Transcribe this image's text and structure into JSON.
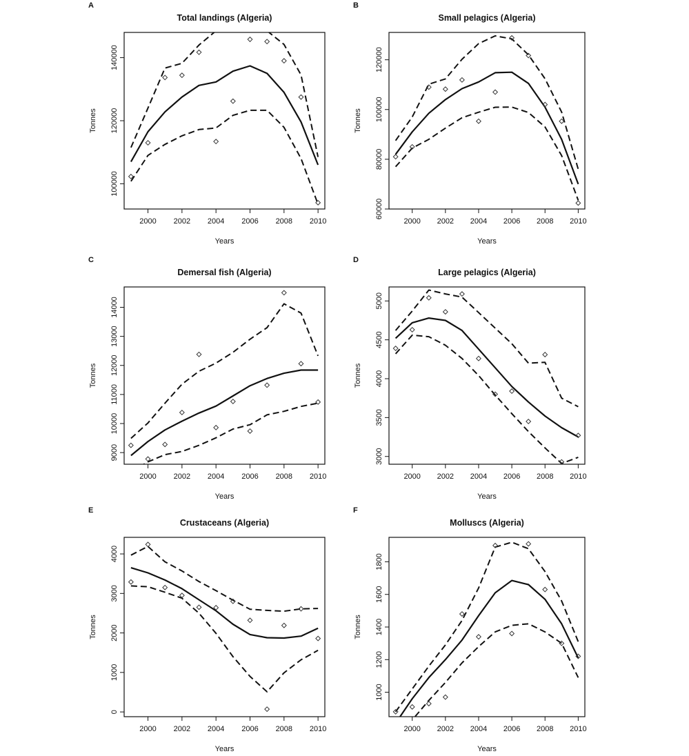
{
  "chart_data": [
    {
      "panel": "A",
      "type": "line",
      "title": "Total landings (Algeria)",
      "xlabel": "Years",
      "ylabel": "Tonnes",
      "xlim": [
        1998.6,
        2010.4
      ],
      "ylim": [
        92000,
        148000
      ],
      "xticks": [
        2000,
        2002,
        2004,
        2006,
        2008,
        2010
      ],
      "yticks": [
        100000,
        120000,
        140000
      ],
      "ytick_labels": [
        "100000",
        "120000",
        "140000"
      ],
      "x": [
        1999,
        2000,
        2001,
        2002,
        2003,
        2004,
        2005,
        2006,
        2007,
        2008,
        2009,
        2010
      ],
      "series": [
        {
          "role": "fit",
          "style": "solid",
          "values": [
            107000,
            116500,
            122800,
            127500,
            131200,
            132300,
            135700,
            137400,
            135000,
            129000,
            119600,
            106000
          ]
        },
        {
          "role": "upper",
          "style": "dashed",
          "values": [
            111500,
            124000,
            136700,
            138200,
            144000,
            148500,
            148500,
            148500,
            148500,
            144200,
            134500,
            108500
          ]
        },
        {
          "role": "lower",
          "style": "dashed",
          "values": [
            100800,
            109000,
            112500,
            115200,
            117200,
            117700,
            121700,
            123300,
            123300,
            117900,
            108000,
            93500
          ]
        },
        {
          "role": "observed",
          "style": "points",
          "values": [
            102300,
            113000,
            133700,
            134400,
            141700,
            113400,
            126200,
            145800,
            145100,
            139000,
            127500,
            94000
          ]
        }
      ]
    },
    {
      "panel": "B",
      "type": "line",
      "title": "Small pelagics (Algeria)",
      "xlabel": "Years",
      "ylabel": "Tonnes",
      "xlim": [
        1998.6,
        2010.4
      ],
      "ylim": [
        60000,
        131000
      ],
      "xticks": [
        2000,
        2002,
        2004,
        2006,
        2008,
        2010
      ],
      "yticks": [
        60000,
        80000,
        100000,
        120000
      ],
      "ytick_labels": [
        "60000",
        "80000",
        "100000",
        "120000"
      ],
      "x": [
        1999,
        2000,
        2001,
        2002,
        2003,
        2004,
        2005,
        2006,
        2007,
        2008,
        2009,
        2010
      ],
      "series": [
        {
          "role": "fit",
          "style": "solid",
          "values": [
            82000,
            91000,
            98500,
            104000,
            108400,
            111100,
            114800,
            115000,
            110500,
            101000,
            88000,
            70000
          ]
        },
        {
          "role": "upper",
          "style": "dashed",
          "values": [
            87500,
            97000,
            110200,
            112300,
            120200,
            126500,
            129600,
            128400,
            122000,
            112400,
            99000,
            76000
          ]
        },
        {
          "role": "lower",
          "style": "dashed",
          "values": [
            77000,
            84500,
            88000,
            92500,
            96700,
            98900,
            100900,
            101000,
            98800,
            93000,
            81500,
            63500
          ]
        },
        {
          "role": "observed",
          "style": "points",
          "values": [
            81000,
            85000,
            109000,
            108200,
            111900,
            95300,
            107000,
            128800,
            121700,
            102000,
            95300,
            62400
          ]
        }
      ]
    },
    {
      "panel": "C",
      "type": "line",
      "title": "Demersal fish (Algeria)",
      "xlabel": "Years",
      "ylabel": "Tonnes",
      "xlim": [
        1998.6,
        2010.4
      ],
      "ylim": [
        8600,
        14700
      ],
      "xticks": [
        2000,
        2002,
        2004,
        2006,
        2008,
        2010
      ],
      "yticks": [
        9000,
        10000,
        11000,
        12000,
        13000,
        14000
      ],
      "ytick_labels": [
        "9000",
        "10000",
        "11000",
        "12000",
        "13000",
        "14000"
      ],
      "x": [
        1999,
        2000,
        2001,
        2002,
        2003,
        2004,
        2005,
        2006,
        2007,
        2008,
        2009,
        2010
      ],
      "series": [
        {
          "role": "fit",
          "style": "solid",
          "values": [
            8900,
            9380,
            9780,
            10080,
            10360,
            10600,
            10950,
            11300,
            11550,
            11730,
            11840,
            11840
          ]
        },
        {
          "role": "upper",
          "style": "dashed",
          "values": [
            9490,
            10020,
            10700,
            11350,
            11800,
            12080,
            12450,
            12900,
            13300,
            14120,
            13800,
            12330
          ]
        },
        {
          "role": "lower",
          "style": "dashed",
          "values": [
            8340,
            8680,
            8930,
            9040,
            9250,
            9510,
            9810,
            9960,
            10300,
            10420,
            10590,
            10700
          ]
        },
        {
          "role": "observed",
          "style": "points",
          "values": [
            9250,
            8780,
            9280,
            10380,
            12380,
            9860,
            10760,
            9740,
            11320,
            14500,
            12060,
            10740
          ]
        }
      ]
    },
    {
      "panel": "D",
      "type": "line",
      "title": "Large pelagics (Algeria)",
      "xlabel": "Years",
      "ylabel": "Tonnes",
      "xlim": [
        1998.6,
        2010.4
      ],
      "ylim": [
        2900,
        5180
      ],
      "xticks": [
        2000,
        2002,
        2004,
        2006,
        2008,
        2010
      ],
      "yticks": [
        3000,
        3500,
        4000,
        4500,
        5000
      ],
      "ytick_labels": [
        "3000",
        "3500",
        "4000",
        "4500",
        "5000"
      ],
      "x": [
        1999,
        2000,
        2001,
        2002,
        2003,
        2004,
        2005,
        2006,
        2007,
        2008,
        2009,
        2010
      ],
      "series": [
        {
          "role": "fit",
          "style": "solid",
          "values": [
            4520,
            4720,
            4780,
            4750,
            4620,
            4380,
            4140,
            3900,
            3700,
            3520,
            3370,
            3250
          ]
        },
        {
          "role": "upper",
          "style": "dashed",
          "values": [
            4620,
            4870,
            5140,
            5090,
            5050,
            4850,
            4650,
            4450,
            4200,
            4210,
            3750,
            3640
          ]
        },
        {
          "role": "lower",
          "style": "dashed",
          "values": [
            4320,
            4560,
            4540,
            4430,
            4260,
            4040,
            3790,
            3550,
            3320,
            3110,
            2910,
            2990
          ]
        },
        {
          "role": "observed",
          "style": "points",
          "values": [
            4390,
            4630,
            5040,
            4860,
            5090,
            4260,
            3800,
            3840,
            3450,
            4310,
            2930,
            3270
          ]
        }
      ]
    },
    {
      "panel": "E",
      "type": "line",
      "title": "Crustaceans (Algeria)",
      "xlabel": "Years",
      "ylabel": "Tonnes",
      "xlim": [
        1998.6,
        2010.4
      ],
      "ylim": [
        -120,
        4420
      ],
      "xticks": [
        2000,
        2002,
        2004,
        2006,
        2008,
        2010
      ],
      "yticks": [
        0,
        1000,
        2000,
        3000,
        4000
      ],
      "ytick_labels": [
        "0",
        "1000",
        "2000",
        "3000",
        "4000"
      ],
      "x": [
        1999,
        2000,
        2001,
        2002,
        2003,
        2004,
        2005,
        2006,
        2007,
        2008,
        2009,
        2010
      ],
      "series": [
        {
          "role": "fit",
          "style": "solid",
          "values": [
            3650,
            3520,
            3340,
            3120,
            2840,
            2560,
            2220,
            1960,
            1880,
            1870,
            1920,
            2120
          ]
        },
        {
          "role": "upper",
          "style": "dashed",
          "values": [
            3970,
            4190,
            3800,
            3570,
            3300,
            3070,
            2830,
            2600,
            2570,
            2550,
            2610,
            2620
          ]
        },
        {
          "role": "lower",
          "style": "dashed",
          "values": [
            3190,
            3170,
            3030,
            2880,
            2500,
            1990,
            1400,
            900,
            510,
            990,
            1320,
            1560
          ]
        },
        {
          "role": "observed",
          "style": "points",
          "values": [
            3290,
            4240,
            3150,
            2950,
            2650,
            2640,
            2800,
            2320,
            70,
            2190,
            2610,
            1860
          ]
        }
      ]
    },
    {
      "panel": "F",
      "type": "line",
      "title": "Molluscs (Algeria)",
      "xlabel": "Years",
      "ylabel": "Tonnes",
      "xlim": [
        1998.6,
        2010.4
      ],
      "ylim": [
        850,
        1950
      ],
      "xticks": [
        2000,
        2002,
        2004,
        2006,
        2008,
        2010
      ],
      "yticks": [
        1000,
        1200,
        1400,
        1600,
        1800
      ],
      "ytick_labels": [
        "1000",
        "1200",
        "1400",
        "1600",
        "1800"
      ],
      "x": [
        1999,
        2000,
        2001,
        2002,
        2003,
        2004,
        2005,
        2006,
        2007,
        2008,
        2009,
        2010
      ],
      "series": [
        {
          "role": "fit",
          "style": "solid",
          "values": [
            810,
            960,
            1090,
            1200,
            1320,
            1470,
            1610,
            1685,
            1660,
            1570,
            1420,
            1210
          ]
        },
        {
          "role": "upper",
          "style": "dashed",
          "values": [
            880,
            1020,
            1160,
            1290,
            1440,
            1640,
            1890,
            1920,
            1880,
            1740,
            1560,
            1310
          ]
        },
        {
          "role": "lower",
          "style": "dashed",
          "values": [
            720,
            830,
            950,
            1060,
            1180,
            1280,
            1370,
            1410,
            1420,
            1370,
            1300,
            1090
          ]
        },
        {
          "role": "observed",
          "style": "points",
          "values": [
            880,
            910,
            930,
            970,
            1480,
            1340,
            1900,
            1360,
            1910,
            1630,
            1300,
            1220
          ]
        }
      ]
    }
  ]
}
